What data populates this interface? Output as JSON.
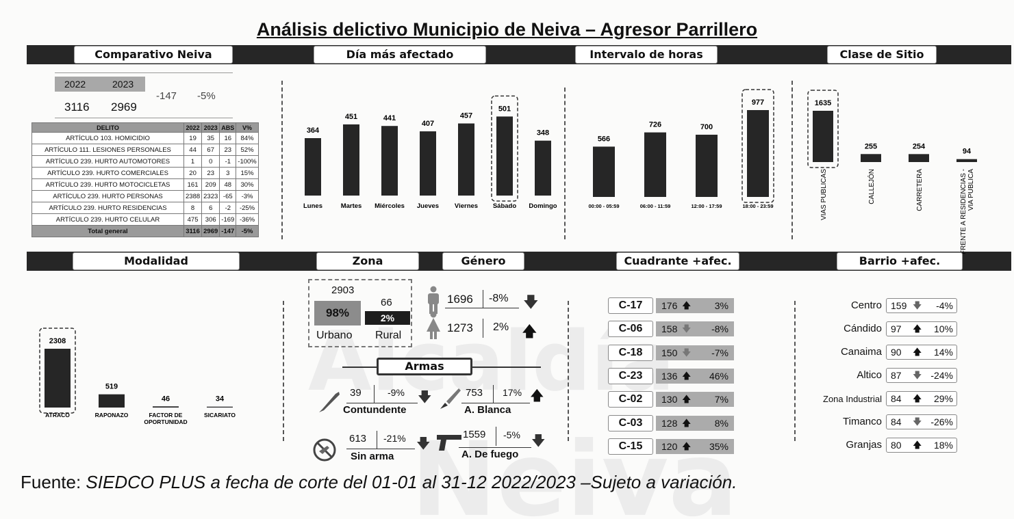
{
  "title": "Análisis delictivo Municipio de Neiva – Agresor Parrillero",
  "watermark": [
    "Alcaldía",
    "Neiva"
  ],
  "headers": {
    "comparativo": "Comparativo Neiva",
    "dia": "Día más afectado",
    "intervalo": "Intervalo de horas",
    "clase": "Clase de Sitio",
    "modalidad": "Modalidad",
    "zona": "Zona",
    "genero": "Género",
    "cuadrante": "Cuadrante +afec.",
    "barrio": "Barrio +afec.",
    "armas": "Armas"
  },
  "comparativo": {
    "y2022": "2022",
    "y2023": "2023",
    "v2022": "3116",
    "v2023": "2969",
    "abs": "-147",
    "pct": "-5%"
  },
  "delitos_table": {
    "headers": [
      "DELITO",
      "2022",
      "2023",
      "ABS",
      "V%"
    ],
    "rows": [
      [
        "ARTÍCULO 103. HOMICIDIO",
        "19",
        "35",
        "16",
        "84%"
      ],
      [
        "ARTÍCULO 111. LESIONES PERSONALES",
        "44",
        "67",
        "23",
        "52%"
      ],
      [
        "ARTÍCULO 239. HURTO AUTOMOTORES",
        "1",
        "0",
        "-1",
        "-100%"
      ],
      [
        "ARTÍCULO 239. HURTO COMERCIALES",
        "20",
        "23",
        "3",
        "15%"
      ],
      [
        "ARTÍCULO 239. HURTO MOTOCICLETAS",
        "161",
        "209",
        "48",
        "30%"
      ],
      [
        "ARTÍCULO 239. HURTO PERSONAS",
        "2388",
        "2323",
        "-65",
        "-3%"
      ],
      [
        "ARTÍCULO 239. HURTO RESIDENCIAS",
        "8",
        "6",
        "-2",
        "-25%"
      ],
      [
        "ARTÍCULO 239. HURTO CELULAR",
        "475",
        "306",
        "-169",
        "-36%"
      ]
    ],
    "total": [
      "Total general",
      "3116",
      "2969",
      "-147",
      "-5%"
    ]
  },
  "chart_data": [
    {
      "id": "dia",
      "type": "bar",
      "categories": [
        "Lunes",
        "Martes",
        "Miércoles",
        "Jueves",
        "Viernes",
        "Sábado",
        "Domingo"
      ],
      "values": [
        364,
        451,
        441,
        407,
        457,
        501,
        348
      ],
      "highlight": "Sábado"
    },
    {
      "id": "intervalo",
      "type": "bar",
      "categories": [
        "00:00 - 05:59",
        "06:00 - 11:59",
        "12:00 - 17:59",
        "18:00 - 23:59"
      ],
      "values": [
        566,
        726,
        700,
        977
      ],
      "highlight": "18:00 - 23:59"
    },
    {
      "id": "clase",
      "type": "bar",
      "categories": [
        "VIAS PUBLICAS",
        "CALLEJÓN",
        "CARRETERA",
        "FRENTE A RESIDENCIAS - VIA PUBLICA"
      ],
      "values": [
        1635,
        255,
        254,
        94
      ],
      "highlight": "VIAS PUBLICAS"
    },
    {
      "id": "modalidad",
      "type": "bar",
      "categories": [
        "ATRACO",
        "RAPONAZO",
        "FACTOR DE OPORTUNIDAD",
        "SICARIATO"
      ],
      "values": [
        2308,
        519,
        46,
        34
      ],
      "highlight": "ATRACO"
    }
  ],
  "zona": {
    "urbano_value": "2903",
    "urbano_pct": "98%",
    "urbano_label": "Urbano",
    "rural_value": "66",
    "rural_pct": "2%",
    "rural_label": "Rural"
  },
  "genero": [
    {
      "icon": "male-icon",
      "value": "1696",
      "pct": "-8%",
      "trend": "down"
    },
    {
      "icon": "female-icon",
      "value": "1273",
      "pct": "2%",
      "trend": "up"
    }
  ],
  "armas": [
    {
      "name": "Contundente",
      "value": "39",
      "pct": "-9%",
      "trend": "down",
      "icon": "bat-icon"
    },
    {
      "name": "A. Blanca",
      "value": "753",
      "pct": "17%",
      "trend": "up",
      "icon": "knife-icon"
    },
    {
      "name": "Sin arma",
      "value": "613",
      "pct": "-21%",
      "trend": "down",
      "icon": "no-weapon-icon"
    },
    {
      "name": "A. De fuego",
      "value": "1559",
      "pct": "-5%",
      "trend": "down",
      "icon": "gun-icon"
    }
  ],
  "cuadrantes": [
    {
      "code": "C-17",
      "value": "176",
      "trend": "up",
      "pct": "3%"
    },
    {
      "code": "C-06",
      "value": "158",
      "trend": "down",
      "pct": "-8%"
    },
    {
      "code": "C-18",
      "value": "150",
      "trend": "down",
      "pct": "-7%"
    },
    {
      "code": "C-23",
      "value": "136",
      "trend": "up",
      "pct": "46%"
    },
    {
      "code": "C-02",
      "value": "130",
      "trend": "up",
      "pct": "7%"
    },
    {
      "code": "C-03",
      "value": "128",
      "trend": "up",
      "pct": "8%"
    },
    {
      "code": "C-15",
      "value": "120",
      "trend": "up",
      "pct": "35%"
    }
  ],
  "barrios": [
    {
      "name": "Centro",
      "value": "159",
      "trend": "down",
      "pct": "-4%"
    },
    {
      "name": "Cándido",
      "value": "97",
      "trend": "up",
      "pct": "10%"
    },
    {
      "name": "Canaima",
      "value": "90",
      "trend": "up",
      "pct": "14%"
    },
    {
      "name": "Altico",
      "value": "87",
      "trend": "down",
      "pct": "-24%"
    },
    {
      "name": "Zona Industrial",
      "value": "84",
      "trend": "up",
      "pct": "29%"
    },
    {
      "name": "Timanco",
      "value": "84",
      "trend": "down",
      "pct": "-26%"
    },
    {
      "name": "Granjas",
      "value": "80",
      "trend": "up",
      "pct": "18%"
    }
  ],
  "footer": {
    "label": "Fuente:",
    "text": "SIEDCO PLUS a fecha de corte del 01-01 al 31-12 2022/2023 –Sujeto a variación."
  },
  "colors": {
    "bar": "#262626",
    "band": "#262626",
    "quadrant_box": "#ababab",
    "urban_box": "#8c8c8c"
  }
}
